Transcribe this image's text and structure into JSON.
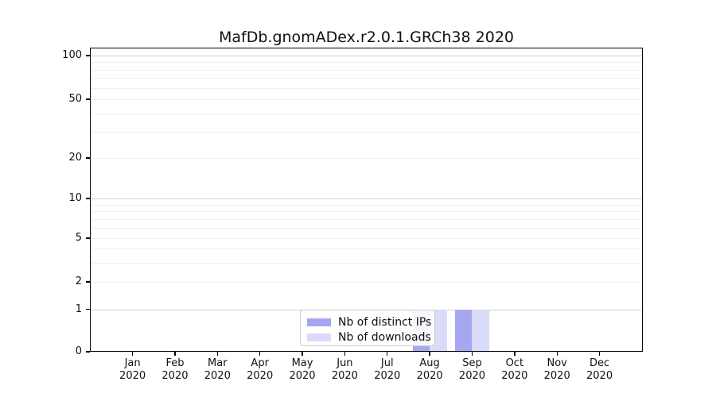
{
  "chart_data": {
    "type": "bar",
    "title": "MafDb.gnomADex.r2.0.1.GRCh38 2020",
    "year": "2020",
    "months": [
      "Jan",
      "Feb",
      "Mar",
      "Apr",
      "May",
      "Jun",
      "Jul",
      "Aug",
      "Sep",
      "Oct",
      "Nov",
      "Dec"
    ],
    "categories": [
      "Jan 2020",
      "Feb 2020",
      "Mar 2020",
      "Apr 2020",
      "May 2020",
      "Jun 2020",
      "Jul 2020",
      "Aug 2020",
      "Sep 2020",
      "Oct 2020",
      "Nov 2020",
      "Dec 2020"
    ],
    "series": [
      {
        "name": "Nb of distinct IPs",
        "color": "#a6a6f1",
        "values": [
          0,
          0,
          0,
          0,
          0,
          0,
          0,
          1,
          1,
          0,
          0,
          0
        ]
      },
      {
        "name": "Nb of downloads",
        "color": "#dadaf9",
        "values": [
          0,
          0,
          0,
          0,
          0,
          0,
          0,
          1,
          1,
          0,
          0,
          0
        ]
      }
    ],
    "y_axis": {
      "scale": "symlog",
      "ticks": [
        0,
        1,
        2,
        5,
        10,
        20,
        50,
        100
      ],
      "tick_labels": [
        "0",
        "1",
        "2",
        "5",
        "10",
        "20",
        "50",
        "100"
      ],
      "minor_gridlines": [
        3,
        4,
        6,
        7,
        8,
        9,
        30,
        40,
        60,
        70,
        80,
        90
      ],
      "major_gridline_values": [
        1,
        10,
        100
      ],
      "ylim": [
        0,
        115
      ]
    },
    "x_axis": {
      "label": "",
      "tick_year": "2020"
    },
    "legend": {
      "position": "lower center",
      "entries": [
        "Nb of distinct IPs",
        "Nb of downloads"
      ]
    },
    "grid": "both",
    "colors": {
      "bar_distinct_ips": "#a6a6f1",
      "bar_downloads": "#dadaf9",
      "major_grid": "#d0d0d0",
      "minor_grid": "#efefef",
      "spine": "#000000",
      "legend_border": "#cccccc"
    }
  }
}
